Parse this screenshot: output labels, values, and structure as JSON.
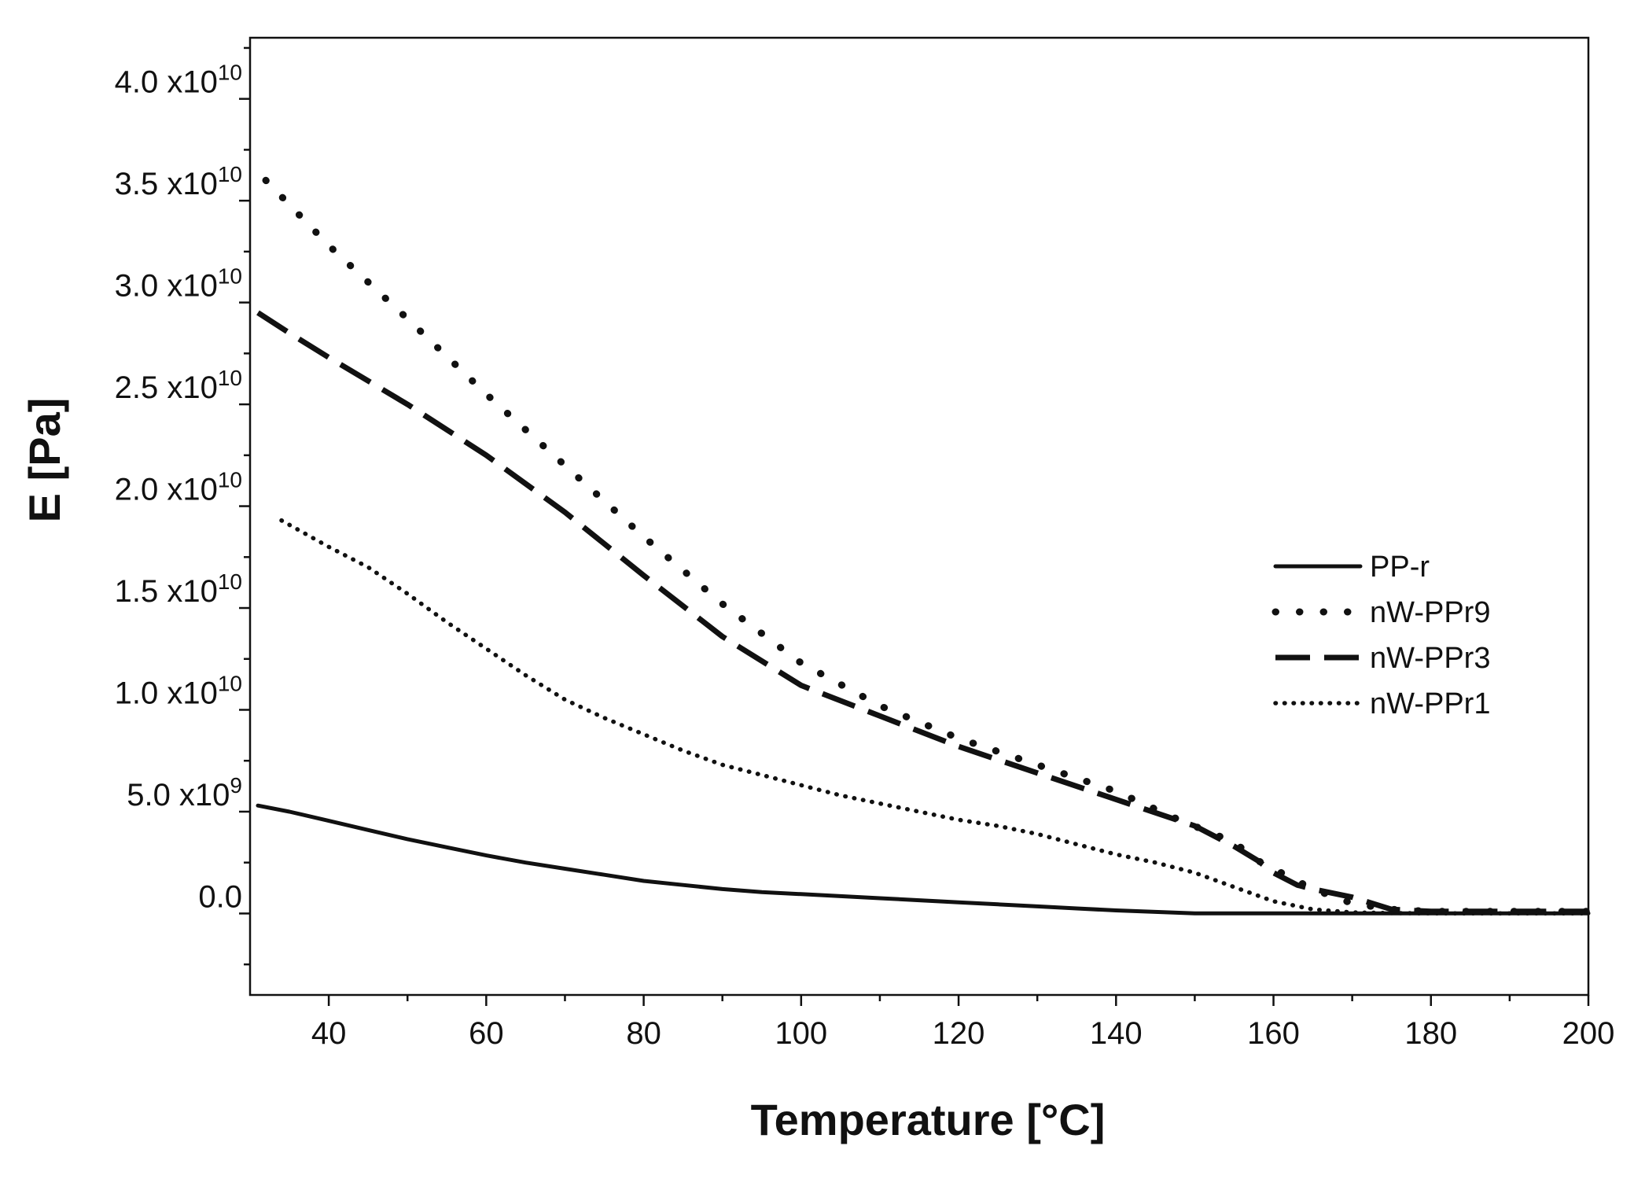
{
  "chart_data": {
    "type": "line",
    "title": "",
    "xlabel": "Temperature [°C]",
    "ylabel": "E [Pa]",
    "xlim": [
      30,
      200
    ],
    "ylim": [
      -4000000000.0,
      43000000000.0
    ],
    "x_ticks": [
      40,
      60,
      80,
      100,
      120,
      140,
      160,
      180,
      200
    ],
    "x_tick_labels": [
      "40",
      "60",
      "80",
      "100",
      "120",
      "140",
      "160",
      "180",
      "200"
    ],
    "y_ticks": [
      {
        "value": 0,
        "mantissa": "0.0",
        "exponent": ""
      },
      {
        "value": 5000000000.0,
        "mantissa": "5.0 x10",
        "exponent": "9"
      },
      {
        "value": 10000000000.0,
        "mantissa": "1.0 x10",
        "exponent": "10"
      },
      {
        "value": 15000000000.0,
        "mantissa": "1.5 x10",
        "exponent": "10"
      },
      {
        "value": 20000000000.0,
        "mantissa": "2.0 x10",
        "exponent": "10"
      },
      {
        "value": 25000000000.0,
        "mantissa": "2.5 x10",
        "exponent": "10"
      },
      {
        "value": 30000000000.0,
        "mantissa": "3.0 x10",
        "exponent": "10"
      },
      {
        "value": 35000000000.0,
        "mantissa": "3.5 x10",
        "exponent": "10"
      },
      {
        "value": 40000000000.0,
        "mantissa": "4.0 x10",
        "exponent": "10"
      }
    ],
    "legend_position": "right",
    "series": [
      {
        "name": "PP-r",
        "style": "solid",
        "x": [
          31,
          35,
          40,
          45,
          50,
          55,
          60,
          65,
          70,
          75,
          80,
          85,
          90,
          95,
          100,
          105,
          110,
          115,
          120,
          125,
          130,
          135,
          140,
          145,
          150,
          155,
          160,
          170,
          180,
          190,
          200
        ],
        "values": [
          5300000000.0,
          5000000000.0,
          4550000000.0,
          4100000000.0,
          3650000000.0,
          3250000000.0,
          2850000000.0,
          2500000000.0,
          2200000000.0,
          1900000000.0,
          1600000000.0,
          1400000000.0,
          1200000000.0,
          1050000000.0,
          950000000.0,
          850000000.0,
          750000000.0,
          650000000.0,
          550000000.0,
          450000000.0,
          350000000.0,
          250000000.0,
          150000000.0,
          80000000.0,
          10000000.0,
          10000000.0,
          10000000.0,
          10000000.0,
          10000000.0,
          10000000.0,
          10000000.0
        ]
      },
      {
        "name": "nW-PPr9",
        "style": "dot-sparse",
        "x": [
          32,
          35,
          40,
          50,
          60,
          70,
          80,
          90,
          100,
          110,
          120,
          130,
          140,
          148,
          155,
          158,
          160,
          162,
          165,
          170,
          175,
          180,
          190,
          200
        ],
        "values": [
          36000000000.0,
          34800000000.0,
          32800000000.0,
          29200000000.0,
          25500000000.0,
          22000000000.0,
          18500000000.0,
          15200000000.0,
          12300000000.0,
          10200000000.0,
          8600000000.0,
          7300000000.0,
          6000000000.0,
          4600000000.0,
          3500000000.0,
          2600000000.0,
          2200000000.0,
          1800000000.0,
          1200000000.0,
          500000000.0,
          200000000.0,
          100000000.0,
          100000000.0,
          100000000.0
        ]
      },
      {
        "name": "nW-PPr3",
        "style": "dash",
        "x": [
          31,
          35,
          40,
          50,
          60,
          70,
          80,
          90,
          100,
          110,
          120,
          130,
          140,
          150,
          155,
          158,
          160,
          163,
          165,
          170,
          175,
          180,
          190,
          200
        ],
        "values": [
          29500000000.0,
          28500000000.0,
          27300000000.0,
          25000000000.0,
          22500000000.0,
          19700000000.0,
          16600000000.0,
          13600000000.0,
          11200000000.0,
          9700000000.0,
          8200000000.0,
          6900000000.0,
          5600000000.0,
          4300000000.0,
          3300000000.0,
          2600000000.0,
          2000000000.0,
          1400000000.0,
          1200000000.0,
          800000000.0,
          200000000.0,
          100000000.0,
          100000000.0,
          100000000.0
        ]
      },
      {
        "name": "nW-PPr1",
        "style": "dot-dense",
        "x": [
          34,
          40,
          45,
          50,
          55,
          60,
          65,
          70,
          75,
          80,
          85,
          90,
          95,
          100,
          105,
          110,
          115,
          120,
          125,
          130,
          135,
          140,
          145,
          150,
          155,
          160,
          165,
          170,
          175,
          180,
          190,
          200
        ],
        "values": [
          19300000000.0,
          18000000000.0,
          17000000000.0,
          15700000000.0,
          14300000000.0,
          13000000000.0,
          11700000000.0,
          10500000000.0,
          9600000000.0,
          8800000000.0,
          8000000000.0,
          7300000000.0,
          6800000000.0,
          6300000000.0,
          5800000000.0,
          5400000000.0,
          5000000000.0,
          4600000000.0,
          4300000000.0,
          3900000000.0,
          3400000000.0,
          2900000000.0,
          2500000000.0,
          2000000000.0,
          1300000000.0,
          600000000.0,
          200000000.0,
          50000000.0,
          20000000.0,
          10000000.0,
          10000000.0,
          10000000.0
        ]
      }
    ]
  }
}
